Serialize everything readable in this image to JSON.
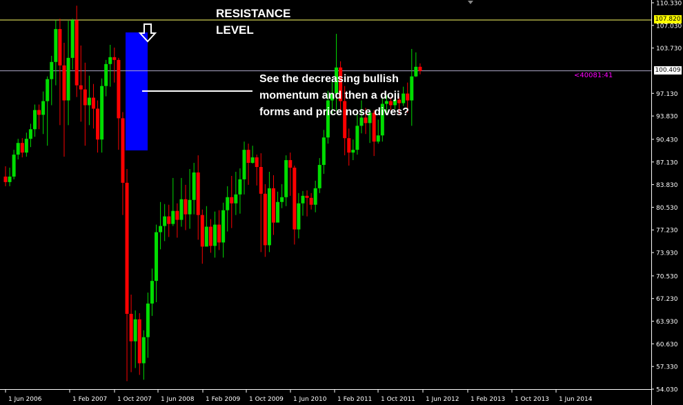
{
  "annotations": {
    "resistance_label": "RESISTANCE\nLEVEL",
    "note": "See the decreasing bullish\nmomentum and then a doji\nforms and price nose dives?",
    "spread_readout": "<40081:41"
  },
  "colors": {
    "background": "#000000",
    "bull": "#00dd00",
    "bear": "#ff0000",
    "resistance_line": "#ffff66",
    "current_line": "#b0a9cc",
    "highlight": "#0000ff",
    "axis_text": "#ffffff"
  },
  "chart_data": {
    "type": "candlestick",
    "title": "",
    "xlabel": "",
    "ylabel": "",
    "ylim": [
      54.03,
      110.33
    ],
    "y_ticks": [
      "110.330",
      "107.030",
      "103.730",
      "100.409",
      "97.130",
      "93.830",
      "90.430",
      "87.130",
      "83.830",
      "80.530",
      "77.230",
      "73.930",
      "70.530",
      "67.230",
      "63.930",
      "60.630",
      "57.330",
      "54.030"
    ],
    "x_ticks": [
      "1 Jun 2006",
      "1 Feb 2007",
      "1 Oct 2007",
      "1 Jun 2008",
      "1 Feb 2009",
      "1 Oct 2009",
      "1 Jun 2010",
      "1 Feb 2011",
      "1 Oct 2011",
      "1 Jun 2012",
      "1 Feb 2013",
      "1 Oct 2013",
      "1 Jun 2014"
    ],
    "resistance_price": "107.820",
    "current_price": "100.409",
    "candles": [
      [
        85.0,
        84.2,
        86.5,
        83.6
      ],
      [
        84.2,
        85.0,
        86.3,
        83.6
      ],
      [
        85.0,
        88.2,
        88.9,
        84.6
      ],
      [
        88.2,
        89.9,
        90.5,
        87.5
      ],
      [
        89.9,
        88.5,
        90.6,
        87.8
      ],
      [
        88.5,
        90.5,
        91.4,
        87.9
      ],
      [
        90.5,
        91.9,
        92.7,
        89.3
      ],
      [
        91.9,
        94.7,
        95.5,
        90.8
      ],
      [
        94.7,
        94.0,
        95.5,
        91.9
      ],
      [
        94.0,
        96.0,
        97.4,
        91.2
      ],
      [
        96.0,
        99.2,
        99.6,
        89.5
      ],
      [
        99.2,
        101.7,
        102.6,
        95.4
      ],
      [
        101.7,
        106.5,
        107.8,
        98.3
      ],
      [
        106.5,
        101.2,
        108.0,
        92.5
      ],
      [
        101.2,
        96.1,
        104.5,
        87.9
      ],
      [
        96.1,
        102.3,
        107.7,
        92.5
      ],
      [
        102.3,
        107.8,
        108.0,
        100.6
      ],
      [
        107.8,
        98.3,
        109.9,
        96.6
      ],
      [
        98.3,
        97.7,
        104.1,
        93.0
      ],
      [
        97.7,
        95.4,
        101.6,
        89.5
      ],
      [
        95.4,
        96.5,
        99.7,
        92.5
      ],
      [
        96.5,
        94.9,
        98.5,
        92.0
      ],
      [
        94.9,
        90.4,
        96.1,
        88.5
      ],
      [
        90.4,
        98.2,
        99.3,
        88.5
      ],
      [
        98.2,
        101.4,
        102.0,
        96.7
      ],
      [
        101.4,
        102.4,
        104.2,
        98.1
      ],
      [
        102.4,
        102.0,
        103.8,
        98.7
      ],
      [
        102.0,
        93.5,
        102.3,
        88.9
      ],
      [
        93.5,
        84.1,
        94.4,
        79.4
      ],
      [
        84.1,
        65.0,
        86.1,
        55.2
      ],
      [
        65.0,
        61.0,
        67.8,
        56.5
      ],
      [
        61.0,
        64.2,
        65.5,
        57.1
      ],
      [
        64.2,
        57.8,
        65.1,
        56.1
      ],
      [
        57.8,
        61.6,
        62.6,
        55.4
      ],
      [
        61.6,
        66.5,
        68.1,
        58.6
      ],
      [
        66.5,
        69.8,
        71.6,
        64.7
      ],
      [
        69.8,
        76.9,
        78.0,
        66.7
      ],
      [
        76.9,
        77.8,
        81.3,
        74.4
      ],
      [
        77.8,
        79.2,
        81.0,
        75.6
      ],
      [
        79.2,
        78.1,
        80.9,
        76.2
      ],
      [
        78.1,
        80.0,
        84.8,
        77.8
      ],
      [
        80.0,
        78.7,
        81.1,
        76.1
      ],
      [
        78.7,
        81.7,
        84.8,
        77.7
      ],
      [
        81.7,
        79.5,
        83.8,
        77.2
      ],
      [
        79.5,
        81.6,
        86.1,
        77.4
      ],
      [
        81.6,
        85.6,
        87.0,
        79.5
      ],
      [
        85.6,
        79.4,
        88.1,
        75.8
      ],
      [
        79.4,
        74.8,
        80.2,
        72.3
      ],
      [
        74.8,
        77.7,
        80.7,
        75.4
      ],
      [
        77.7,
        74.9,
        78.8,
        73.9
      ],
      [
        74.9,
        78.0,
        79.9,
        73.2
      ],
      [
        78.0,
        75.4,
        80.1,
        74.3
      ],
      [
        75.4,
        80.1,
        81.2,
        73.2
      ],
      [
        80.1,
        82.0,
        83.6,
        77.0
      ],
      [
        82.0,
        81.1,
        85.1,
        77.5
      ],
      [
        81.1,
        82.4,
        85.7,
        79.4
      ],
      [
        82.4,
        84.6,
        86.2,
        79.6
      ],
      [
        84.6,
        88.9,
        90.1,
        82.4
      ],
      [
        88.9,
        87.0,
        89.8,
        83.8
      ],
      [
        87.0,
        87.8,
        89.5,
        86.9
      ],
      [
        87.8,
        86.4,
        88.2,
        83.7
      ],
      [
        86.4,
        82.5,
        88.4,
        74.0
      ],
      [
        82.5,
        75.0,
        83.9,
        73.3
      ],
      [
        75.0,
        83.3,
        85.7,
        74.0
      ],
      [
        83.3,
        78.3,
        85.2,
        76.5
      ],
      [
        78.3,
        81.3,
        82.8,
        78.9
      ],
      [
        81.3,
        82.0,
        83.9,
        80.4
      ],
      [
        82.0,
        87.4,
        88.1,
        80.7
      ],
      [
        87.4,
        86.3,
        88.5,
        82.2
      ],
      [
        86.3,
        77.3,
        86.6,
        75.1
      ],
      [
        77.3,
        81.1,
        82.6,
        76.0
      ],
      [
        81.1,
        82.2,
        82.9,
        79.3
      ],
      [
        82.2,
        81.9,
        83.0,
        79.2
      ],
      [
        81.9,
        80.9,
        82.6,
        80.2
      ],
      [
        80.9,
        83.3,
        84.4,
        79.8
      ],
      [
        83.3,
        86.7,
        87.7,
        82.6
      ],
      [
        86.7,
        90.7,
        91.8,
        85.4
      ],
      [
        90.7,
        96.1,
        97.5,
        89.8
      ],
      [
        96.1,
        97.1,
        99.0,
        94.1
      ],
      [
        97.1,
        100.9,
        105.8,
        94.6
      ],
      [
        100.9,
        96.0,
        101.8,
        94.6
      ],
      [
        96.0,
        90.6,
        98.2,
        88.1
      ],
      [
        90.6,
        88.5,
        92.0,
        86.6
      ],
      [
        88.5,
        88.9,
        90.4,
        87.4
      ],
      [
        88.9,
        92.4,
        94.1,
        88.2
      ],
      [
        92.4,
        93.6,
        96.1,
        91.3
      ],
      [
        93.6,
        92.8,
        95.0,
        91.2
      ],
      [
        92.8,
        94.3,
        94.8,
        89.9
      ],
      [
        94.3,
        90.1,
        94.7,
        88.0
      ],
      [
        90.1,
        91.0,
        93.3,
        89.8
      ],
      [
        91.0,
        95.6,
        96.5,
        90.1
      ],
      [
        95.6,
        96.0,
        96.8,
        94.2
      ],
      [
        96.0,
        95.4,
        96.6,
        94.7
      ],
      [
        95.4,
        96.2,
        96.8,
        94.8
      ],
      [
        96.2,
        95.7,
        96.6,
        94.1
      ],
      [
        95.7,
        97.1,
        98.1,
        95.3
      ],
      [
        97.1,
        96.1,
        98.7,
        94.3
      ],
      [
        96.1,
        99.6,
        103.6,
        92.4
      ],
      [
        99.6,
        101.0,
        103.1,
        99.5
      ],
      [
        101.0,
        100.4,
        101.5,
        99.9
      ]
    ]
  }
}
